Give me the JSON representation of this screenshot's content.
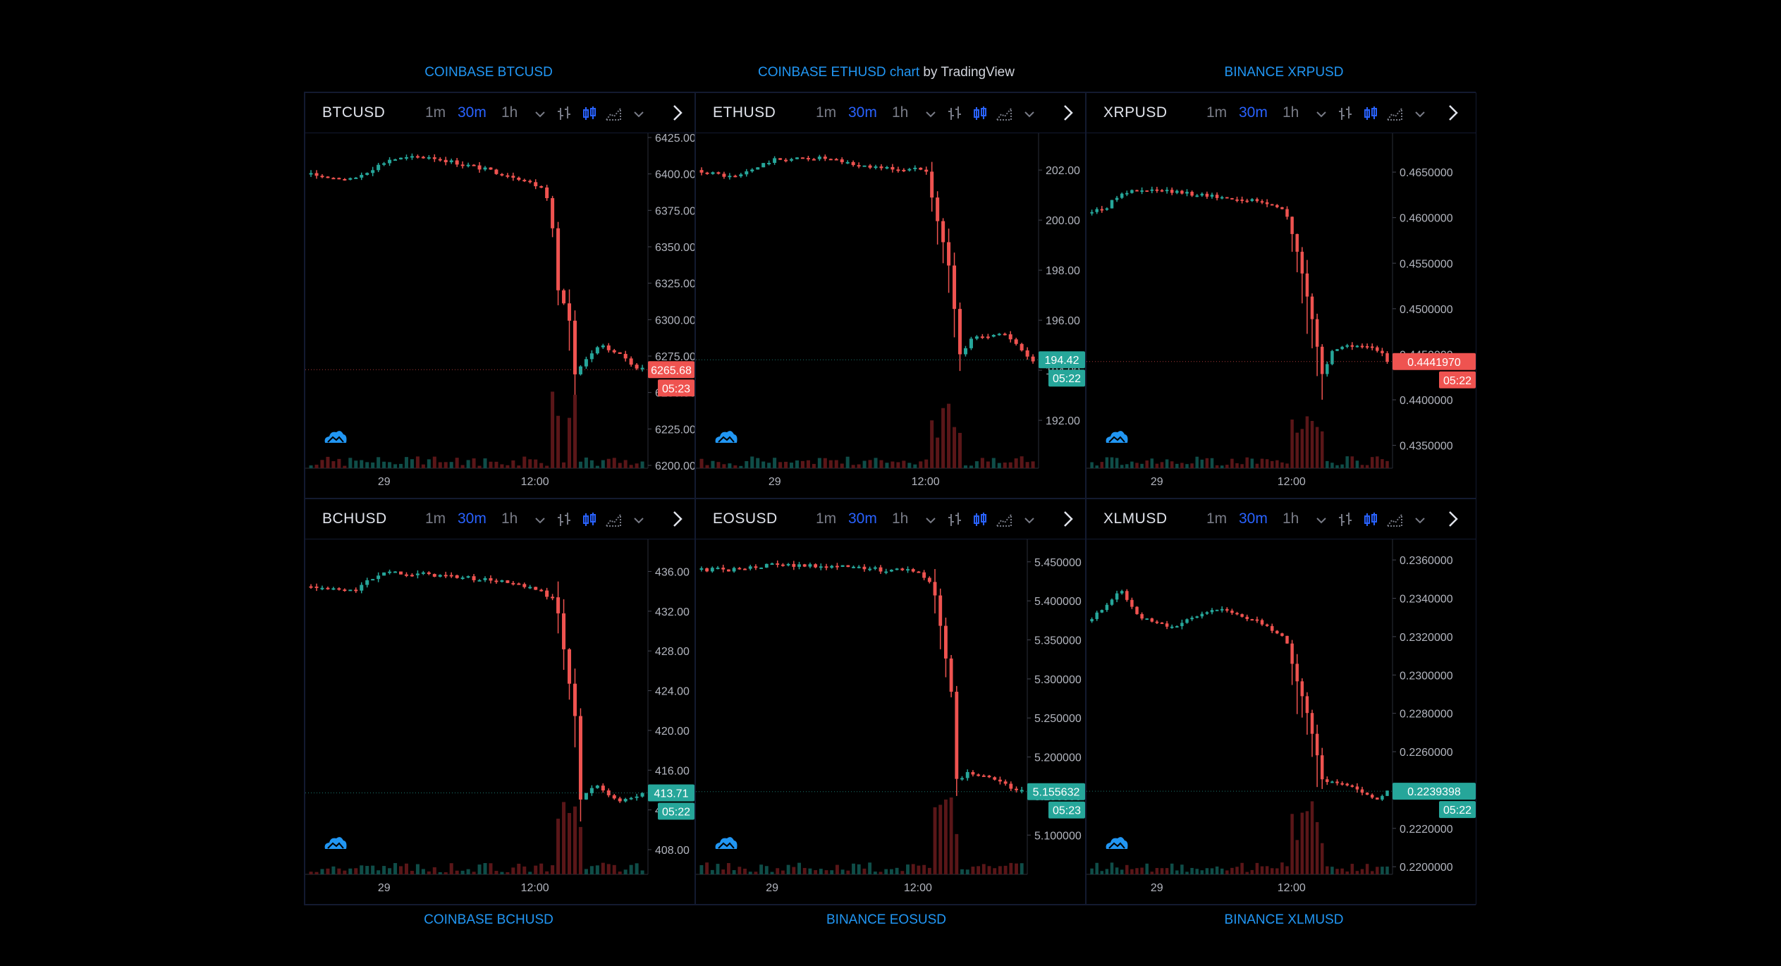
{
  "captions": {
    "top_left": "COINBASE BTCUSD",
    "top_center_link": "COINBASE ETHUSD chart",
    "top_center_suffix": " by TradingView",
    "top_right": "BINANCE XRPUSD",
    "bottom_left": "COINBASE BCHUSD",
    "bottom_center": "BINANCE EOSUSD",
    "bottom_right": "BINANCE XLMUSD"
  },
  "toolbar": {
    "timeframes": [
      "1m",
      "30m",
      "1h"
    ],
    "active_timeframe": "30m"
  },
  "colors": {
    "up": "#26a69a",
    "down": "#ef5350",
    "up_volume": "#0f4d48",
    "down_volume": "#5a1618",
    "accent": "#2962ff",
    "caption": "#2196f3",
    "text": "#d1d4dc",
    "axis_text": "#b2b5be",
    "border": "#131a30"
  },
  "chart_data": [
    {
      "type": "candlestick",
      "symbol": "BTCUSD",
      "yticks": [
        "6425.00",
        "6400.00",
        "6375.00",
        "6350.00",
        "6325.00",
        "6300.00",
        "6275.00",
        "6250.00",
        "6225.00",
        "6200.00"
      ],
      "ylim": [
        6200,
        6425
      ],
      "xticks": [
        "29",
        "12:00"
      ],
      "last_price": "6265.68",
      "countdown": "05:23",
      "last_direction": "down",
      "close_path": [
        [
          0,
          6400
        ],
        [
          0.12,
          6396
        ],
        [
          0.22,
          6410
        ],
        [
          0.32,
          6412
        ],
        [
          0.44,
          6405
        ],
        [
          0.55,
          6398
        ],
        [
          0.62,
          6390
        ],
        [
          0.64,
          6380
        ],
        [
          0.66,
          6320
        ],
        [
          0.69,
          6300
        ],
        [
          0.7,
          6260
        ],
        [
          0.74,
          6275
        ],
        [
          0.77,
          6282
        ],
        [
          0.83,
          6275
        ],
        [
          0.86,
          6268
        ],
        [
          0.88,
          6265.68
        ]
      ]
    },
    {
      "type": "candlestick",
      "symbol": "ETHUSD",
      "yticks": [
        "202.00",
        "200.00",
        "198.00",
        "196.00",
        "194.00",
        "192.00"
      ],
      "ylim": [
        190.2,
        203.3
      ],
      "xticks": [
        "29",
        "12:00"
      ],
      "last_price": "194.42",
      "countdown": "05:22",
      "last_direction": "up",
      "close_path": [
        [
          0,
          202.0
        ],
        [
          0.1,
          201.7
        ],
        [
          0.2,
          202.4
        ],
        [
          0.32,
          202.5
        ],
        [
          0.42,
          202.2
        ],
        [
          0.55,
          202.0
        ],
        [
          0.6,
          202.1
        ],
        [
          0.63,
          200.0
        ],
        [
          0.66,
          198.2
        ],
        [
          0.69,
          194.5
        ],
        [
          0.72,
          195.3
        ],
        [
          0.8,
          195.5
        ],
        [
          0.85,
          194.8
        ],
        [
          0.88,
          194.42
        ]
      ]
    },
    {
      "type": "candlestick",
      "symbol": "XRPUSD",
      "yticks": [
        "0.4650000",
        "0.4600000",
        "0.4550000",
        "0.4500000",
        "0.4450000",
        "0.4400000",
        "0.4350000"
      ],
      "ylim": [
        0.4328,
        0.4688
      ],
      "xticks": [
        "29",
        "12:00"
      ],
      "last_price": "0.4441970",
      "countdown": "05:22",
      "last_direction": "down",
      "close_path": [
        [
          0,
          0.4605
        ],
        [
          0.06,
          0.4612
        ],
        [
          0.1,
          0.4628
        ],
        [
          0.2,
          0.463
        ],
        [
          0.34,
          0.4625
        ],
        [
          0.5,
          0.4618
        ],
        [
          0.58,
          0.461
        ],
        [
          0.62,
          0.4555
        ],
        [
          0.66,
          0.449
        ],
        [
          0.69,
          0.4425
        ],
        [
          0.72,
          0.4455
        ],
        [
          0.8,
          0.4462
        ],
        [
          0.86,
          0.4452
        ],
        [
          0.88,
          0.444197
        ]
      ]
    },
    {
      "type": "candlestick",
      "symbol": "BCHUSD",
      "yticks": [
        "436.00",
        "432.00",
        "428.00",
        "424.00",
        "420.00",
        "416.00",
        "412.00",
        "408.00"
      ],
      "ylim": [
        405.8,
        438.8
      ],
      "xticks": [
        "29",
        "12:00"
      ],
      "last_price": "413.71",
      "countdown": "05:22",
      "last_direction": "up",
      "close_path": [
        [
          0,
          434.5
        ],
        [
          0.12,
          434.0
        ],
        [
          0.2,
          436.0
        ],
        [
          0.35,
          435.6
        ],
        [
          0.5,
          435.0
        ],
        [
          0.6,
          434.0
        ],
        [
          0.64,
          433.0
        ],
        [
          0.66,
          428.0
        ],
        [
          0.69,
          421.0
        ],
        [
          0.7,
          413.0
        ],
        [
          0.74,
          414.5
        ],
        [
          0.8,
          413.0
        ],
        [
          0.86,
          413.71
        ]
      ]
    },
    {
      "type": "candlestick",
      "symbol": "EOSUSD",
      "yticks": [
        "5.450000",
        "5.400000",
        "5.350000",
        "5.300000",
        "5.250000",
        "5.200000",
        "5.150000",
        "5.100000"
      ],
      "ylim": [
        5.0533,
        5.4733
      ],
      "xticks": [
        "29",
        "12:00"
      ],
      "last_price": "5.155632",
      "countdown": "05:23",
      "last_direction": "up",
      "close_path": [
        [
          0,
          5.44
        ],
        [
          0.1,
          5.44
        ],
        [
          0.2,
          5.446
        ],
        [
          0.35,
          5.445
        ],
        [
          0.5,
          5.44
        ],
        [
          0.6,
          5.438
        ],
        [
          0.64,
          5.42
        ],
        [
          0.66,
          5.37
        ],
        [
          0.69,
          5.28
        ],
        [
          0.7,
          5.17
        ],
        [
          0.74,
          5.18
        ],
        [
          0.8,
          5.175
        ],
        [
          0.86,
          5.158
        ],
        [
          0.88,
          5.155632
        ]
      ]
    },
    {
      "type": "candlestick",
      "symbol": "XLMUSD",
      "yticks": [
        "0.2360000",
        "0.2340000",
        "0.2320000",
        "0.2300000",
        "0.2280000",
        "0.2260000",
        "0.2240000",
        "0.2220000",
        "0.2200000"
      ],
      "ylim": [
        0.21975,
        0.23685
      ],
      "xticks": [
        "29",
        "12:00"
      ],
      "last_price": "0.2239398",
      "countdown": "05:22",
      "last_direction": "up",
      "close_path": [
        [
          0,
          0.2328
        ],
        [
          0.05,
          0.2335
        ],
        [
          0.1,
          0.2345
        ],
        [
          0.15,
          0.233
        ],
        [
          0.25,
          0.2325
        ],
        [
          0.38,
          0.2335
        ],
        [
          0.5,
          0.2328
        ],
        [
          0.58,
          0.232
        ],
        [
          0.62,
          0.2295
        ],
        [
          0.66,
          0.227
        ],
        [
          0.69,
          0.2245
        ],
        [
          0.72,
          0.2245
        ],
        [
          0.8,
          0.224
        ],
        [
          0.86,
          0.2235
        ],
        [
          0.88,
          0.2239398
        ]
      ]
    }
  ]
}
